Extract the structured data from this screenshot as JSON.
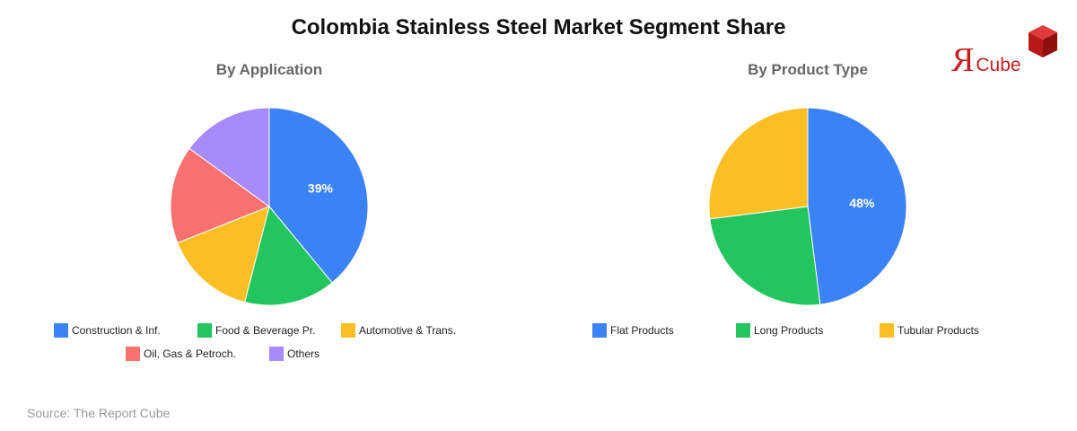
{
  "title": "Colombia Stainless Steel Market Segment Share",
  "logo": {
    "word": "Cube",
    "colors": {
      "red": "#c41e1e",
      "cube_dark": "#a31010",
      "cube_light": "#e03a3a"
    }
  },
  "source": "Source: The Report Cube",
  "chart_data": [
    {
      "type": "pie",
      "title": "By Application",
      "labels": [
        "Construction & Inf.",
        "Food & Beverage Pr.",
        "Automotive & Trans.",
        "Oil, Gas & Petroch.",
        "Others"
      ],
      "values": [
        39,
        15,
        15,
        16,
        15
      ],
      "colors": [
        "#3b82f6",
        "#22c55e",
        "#fbbf24",
        "#f87171",
        "#a78bfa"
      ],
      "data_labels": [
        "39%",
        "",
        "",
        "",
        ""
      ],
      "start_angle": "12 o'clock",
      "direction": "clockwise",
      "legend": "bottom"
    },
    {
      "type": "pie",
      "title": "By Product Type",
      "labels": [
        "Flat Products",
        "Long Products",
        "Tubular Products"
      ],
      "values": [
        48,
        25,
        27
      ],
      "colors": [
        "#3b82f6",
        "#22c55e",
        "#fbbf24"
      ],
      "data_labels": [
        "48%",
        "",
        ""
      ],
      "start_angle": "12 o'clock",
      "direction": "clockwise",
      "legend": "bottom"
    }
  ]
}
